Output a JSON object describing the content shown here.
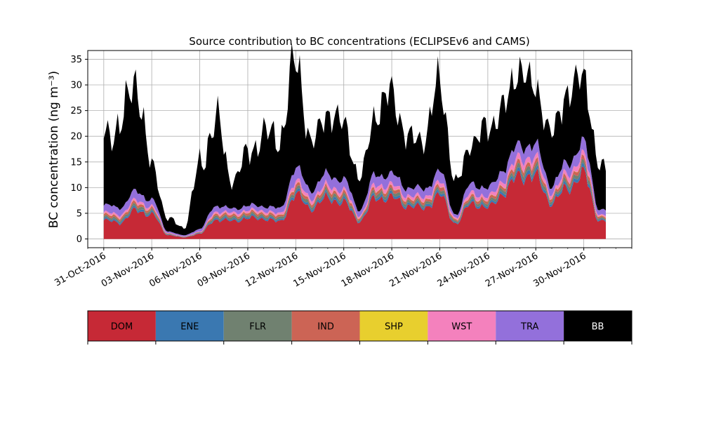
{
  "chart_data": {
    "type": "area",
    "stacked": true,
    "title": "Source contribution to BC concentrations (ECLIPSEv6 and CAMS)",
    "ylabel": "BC concentration (ng m⁻³)",
    "xlabel": "",
    "xlim": [
      "2016-10-31",
      "2016-12-04"
    ],
    "ylim": [
      -1.7,
      36.7
    ],
    "yticks": [
      "0",
      "5",
      "10",
      "15",
      "20",
      "25",
      "30",
      "35"
    ],
    "xticks": [
      "31-Oct-2016",
      "03-Nov-2016",
      "06-Nov-2016",
      "09-Nov-2016",
      "12-Nov-2016",
      "15-Nov-2016",
      "18-Nov-2016",
      "21-Nov-2016",
      "24-Nov-2016",
      "27-Nov-2016",
      "30-Nov-2016"
    ],
    "grid": true,
    "legend_position": "bottom",
    "start": "2016-11-01",
    "end": "2016-12-02",
    "colors": {
      "DOM": "#c62936",
      "ENE": "#3a78b1",
      "FLR": "#708170",
      "IND": "#cc6455",
      "SHP": "#e8cf2e",
      "WST": "#f481bd",
      "TRA": "#9370db",
      "BB": "#000000"
    },
    "legend": [
      "DOM",
      "ENE",
      "FLR",
      "IND",
      "SHP",
      "WST",
      "TRA",
      "BB"
    ],
    "x": [
      "2016-11-01",
      "2016-11-02",
      "2016-11-03",
      "2016-11-04",
      "2016-11-05",
      "2016-11-06",
      "2016-11-07",
      "2016-11-08",
      "2016-11-09",
      "2016-11-10",
      "2016-11-11",
      "2016-11-12",
      "2016-11-13",
      "2016-11-14",
      "2016-11-15",
      "2016-11-16",
      "2016-11-17",
      "2016-11-18",
      "2016-11-19",
      "2016-11-20",
      "2016-11-21",
      "2016-11-22",
      "2016-11-23",
      "2016-11-24",
      "2016-11-25",
      "2016-11-26",
      "2016-11-27",
      "2016-11-28",
      "2016-11-29",
      "2016-11-30",
      "2016-12-01",
      "2016-12-02"
    ],
    "series": [
      {
        "name": "DOM",
        "values": [
          3.6,
          3.2,
          5.5,
          4.8,
          0.8,
          0.3,
          1.0,
          3.8,
          3.5,
          4.0,
          4.0,
          3.3,
          8.5,
          6.0,
          8.0,
          7.0,
          3.5,
          8.0,
          8.0,
          6.5,
          6.0,
          8.5,
          3.0,
          7.0,
          6.0,
          9.0,
          12.5,
          12.0,
          7.0,
          10.0,
          12.5,
          3.5
        ]
      },
      {
        "name": "ENE",
        "values": [
          0.3,
          0.3,
          0.4,
          0.3,
          0.1,
          0.05,
          0.1,
          0.3,
          0.3,
          0.3,
          0.3,
          0.3,
          0.5,
          0.4,
          0.5,
          0.5,
          0.2,
          0.5,
          0.5,
          0.4,
          0.4,
          0.5,
          0.2,
          0.4,
          0.4,
          0.5,
          0.7,
          0.7,
          0.4,
          0.6,
          0.7,
          0.2
        ]
      },
      {
        "name": "FLR",
        "values": [
          0.4,
          0.4,
          0.5,
          0.4,
          0.1,
          0.05,
          0.1,
          0.4,
          0.4,
          0.4,
          0.4,
          0.4,
          0.6,
          0.5,
          0.6,
          0.6,
          0.3,
          0.6,
          0.6,
          0.5,
          0.5,
          0.6,
          0.3,
          0.5,
          0.5,
          0.6,
          0.8,
          0.8,
          0.5,
          0.7,
          0.8,
          0.3
        ]
      },
      {
        "name": "IND",
        "values": [
          0.4,
          0.4,
          0.5,
          0.4,
          0.1,
          0.05,
          0.1,
          0.4,
          0.4,
          0.4,
          0.4,
          0.4,
          0.6,
          0.5,
          0.6,
          0.6,
          0.3,
          0.6,
          0.6,
          0.5,
          0.5,
          0.6,
          0.3,
          0.5,
          0.5,
          0.6,
          0.8,
          0.8,
          0.5,
          0.7,
          0.8,
          0.3
        ]
      },
      {
        "name": "SHP",
        "values": [
          0.05,
          0.05,
          0.05,
          0.05,
          0.0,
          0.0,
          0.0,
          0.05,
          0.05,
          0.05,
          0.05,
          0.05,
          0.05,
          0.05,
          0.05,
          0.05,
          0.05,
          0.05,
          0.05,
          0.05,
          0.05,
          0.05,
          0.05,
          0.05,
          0.05,
          0.05,
          0.05,
          0.05,
          0.05,
          0.05,
          0.05,
          0.05
        ]
      },
      {
        "name": "WST",
        "values": [
          0.4,
          0.4,
          0.5,
          0.4,
          0.1,
          0.05,
          0.1,
          0.4,
          0.4,
          0.4,
          0.4,
          0.4,
          0.8,
          0.6,
          0.7,
          0.6,
          0.3,
          0.8,
          0.7,
          0.6,
          0.6,
          0.8,
          0.3,
          0.7,
          0.6,
          0.8,
          1.2,
          1.1,
          0.6,
          0.9,
          1.1,
          0.3
        ]
      },
      {
        "name": "TRA",
        "values": [
          1.4,
          1.4,
          1.7,
          1.3,
          0.3,
          0.2,
          0.5,
          1.2,
          0.8,
          0.9,
          0.9,
          1.0,
          2.5,
          1.6,
          2.2,
          2.0,
          1.1,
          2.0,
          2.0,
          1.5,
          1.6,
          2.0,
          0.6,
          1.8,
          1.6,
          2.2,
          2.5,
          2.4,
          1.4,
          2.0,
          2.5,
          1.0
        ]
      },
      {
        "name": "BB",
        "values": [
          13.5,
          16.0,
          22.0,
          6.5,
          2.5,
          1.5,
          12.0,
          17.0,
          5.5,
          10.0,
          14.0,
          14.0,
          21.0,
          9.0,
          12.0,
          11.0,
          6.0,
          12.0,
          16.0,
          9.5,
          10.0,
          17.5,
          6.0,
          8.0,
          12.0,
          12.0,
          15.0,
          11.0,
          10.0,
          14.0,
          13.0,
          8.0
        ]
      }
    ]
  }
}
